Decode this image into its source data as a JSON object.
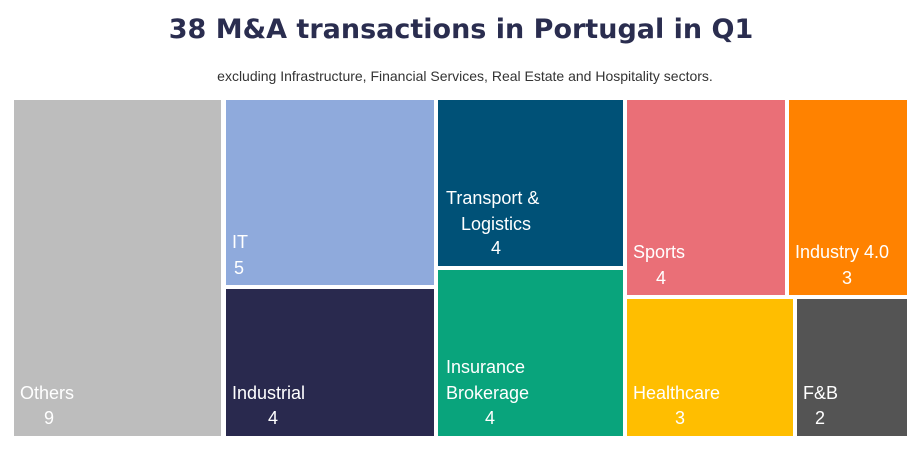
{
  "chart_data": {
    "type": "treemap",
    "title": "38 M&A transactions in Portugal in Q1",
    "subtitle": "excluding Infrastructure, Financial Services, Real Estate and Hospitality sectors.",
    "tiles": [
      {
        "name": "Others",
        "value": "9",
        "color": "#bdbdbd"
      },
      {
        "name": "IT",
        "value": "5",
        "color": "#8faadc"
      },
      {
        "name": "Industrial",
        "value": "4",
        "color": "#29294e"
      },
      {
        "name": "Transport & Logistics",
        "value": "4",
        "color": "#005177"
      },
      {
        "name": "Insurance Brokerage",
        "value": "4",
        "color": "#09a47c"
      },
      {
        "name": "Sports",
        "value": "4",
        "color": "#ea6f77"
      },
      {
        "name": "Industry 4.0",
        "value": "3",
        "color": "#ff8200"
      },
      {
        "name": "Healthcare",
        "value": "3",
        "color": "#ffbe00"
      },
      {
        "name": "F&B",
        "value": "2",
        "color": "#545454"
      }
    ]
  }
}
